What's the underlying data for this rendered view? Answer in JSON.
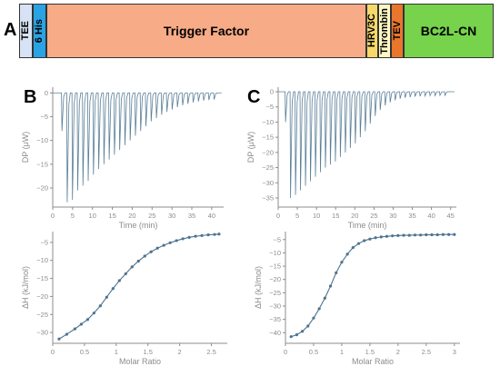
{
  "panel_labels": {
    "a": "A",
    "b": "B",
    "c": "C"
  },
  "construct": {
    "segments": [
      {
        "label": "TEE",
        "color": "#d7e3f4",
        "vertical": true
      },
      {
        "label": "6 His",
        "color": "#29a3e3",
        "vertical": true
      },
      {
        "label": "Trigger Factor",
        "color": "#f7ab86",
        "vertical": false
      },
      {
        "label": "HRV3C",
        "color": "#f7d96b",
        "vertical": true
      },
      {
        "label": "Thrombin",
        "color": "#fff8c4",
        "vertical": true
      },
      {
        "label": "TEV",
        "color": "#e8762c",
        "vertical": true
      },
      {
        "label": "BC2L-CN",
        "color": "#77d24c",
        "vertical": false
      }
    ]
  },
  "colors": {
    "trace": "#5b7f98",
    "fit": "#4e7390",
    "axis": "#8c8c8c",
    "text": "#8c8c8c"
  },
  "chart_data": [
    {
      "id": "B-thermogram",
      "type": "line",
      "xlabel": "Time (min)",
      "ylabel": "DP (μW)",
      "xlim": [
        0,
        43
      ],
      "ylim": [
        -24,
        1.2
      ],
      "xticks": [
        0,
        5,
        10,
        15,
        20,
        25,
        30,
        35,
        40
      ],
      "yticks": [
        0,
        -5,
        -10,
        -15,
        -20
      ],
      "peaks": {
        "first_time": 2.2,
        "count": 30,
        "interval": 1.32,
        "baseline": 0,
        "depths": [
          -8,
          -23,
          -22.5,
          -20.5,
          -19.5,
          -18.5,
          -17.2,
          -16,
          -15,
          -14,
          -13,
          -12,
          -11,
          -10,
          -9,
          -8,
          -7,
          -6,
          -5.3,
          -4.6,
          -4,
          -3.5,
          -3,
          -2.6,
          -2.3,
          -2,
          -1.8,
          -1.6,
          -1.5,
          -1.4
        ]
      }
    },
    {
      "id": "B-isotherm",
      "type": "scatter",
      "xlabel": "Molar Ratio",
      "ylabel": "ΔH (kJ/mol)",
      "xlim": [
        0,
        2.75
      ],
      "ylim": [
        -33,
        -2
      ],
      "xticks": [
        0,
        0.5,
        1,
        1.5,
        2,
        2.5
      ],
      "yticks": [
        -5,
        -10,
        -15,
        -20,
        -25,
        -30
      ],
      "x": [
        0.1,
        0.22,
        0.35,
        0.45,
        0.55,
        0.65,
        0.75,
        0.85,
        0.95,
        1.05,
        1.15,
        1.25,
        1.35,
        1.45,
        1.55,
        1.65,
        1.75,
        1.85,
        1.95,
        2.05,
        2.15,
        2.25,
        2.35,
        2.45,
        2.55,
        2.62
      ],
      "y": [
        -31.8,
        -30.5,
        -29,
        -27.7,
        -26.4,
        -24.6,
        -22.6,
        -20.2,
        -17.8,
        -15.6,
        -13.7,
        -11.8,
        -10.2,
        -8.8,
        -7.6,
        -6.6,
        -5.8,
        -5.1,
        -4.5,
        -4,
        -3.6,
        -3.3,
        -3.1,
        -2.9,
        -2.8,
        -2.7
      ]
    },
    {
      "id": "C-thermogram",
      "type": "line",
      "xlabel": "Time (min)",
      "ylabel": "DP (μW)",
      "xlim": [
        0,
        46.5
      ],
      "ylim": [
        -38,
        1.5
      ],
      "xticks": [
        0,
        5,
        10,
        15,
        20,
        25,
        30,
        35,
        40,
        45
      ],
      "yticks": [
        0,
        -5,
        -10,
        -15,
        -20,
        -25,
        -30,
        -35
      ],
      "peaks": {
        "first_time": 1.8,
        "count": 33,
        "interval": 1.3,
        "baseline": 0,
        "depths": [
          -10,
          -35,
          -34,
          -32.5,
          -31,
          -29.5,
          -28,
          -26.5,
          -25,
          -24,
          -23,
          -21.5,
          -20,
          -18.5,
          -17,
          -15,
          -13,
          -10.5,
          -8,
          -6,
          -4.5,
          -3.5,
          -2.8,
          -2.3,
          -2,
          -1.8,
          -1.6,
          -1.5,
          -1.4,
          -1.3,
          -1.3,
          -1.2,
          -1.2
        ]
      }
    },
    {
      "id": "C-isotherm",
      "type": "scatter",
      "xlabel": "Molar Ratio",
      "ylabel": "ΔH (kJ/mol)",
      "xlim": [
        0,
        3.1
      ],
      "ylim": [
        -44,
        -2
      ],
      "xticks": [
        0,
        0.5,
        1,
        1.5,
        2,
        2.5,
        3
      ],
      "yticks": [
        -5,
        -10,
        -15,
        -20,
        -25,
        -30,
        -35,
        -40
      ],
      "x": [
        0.1,
        0.2,
        0.3,
        0.4,
        0.5,
        0.6,
        0.7,
        0.8,
        0.9,
        1.0,
        1.1,
        1.2,
        1.3,
        1.4,
        1.5,
        1.6,
        1.7,
        1.8,
        1.9,
        2.0,
        2.1,
        2.2,
        2.3,
        2.4,
        2.5,
        2.6,
        2.7,
        2.8,
        2.9,
        3.0
      ],
      "y": [
        -41.5,
        -40.8,
        -39.5,
        -37.5,
        -34.5,
        -31,
        -27,
        -22.5,
        -17.5,
        -13.5,
        -10.5,
        -8,
        -6.5,
        -5.4,
        -4.8,
        -4.3,
        -4,
        -3.8,
        -3.6,
        -3.5,
        -3.4,
        -3.4,
        -3.3,
        -3.3,
        -3.2,
        -3.2,
        -3.2,
        -3.1,
        -3.1,
        -3.1
      ]
    }
  ]
}
